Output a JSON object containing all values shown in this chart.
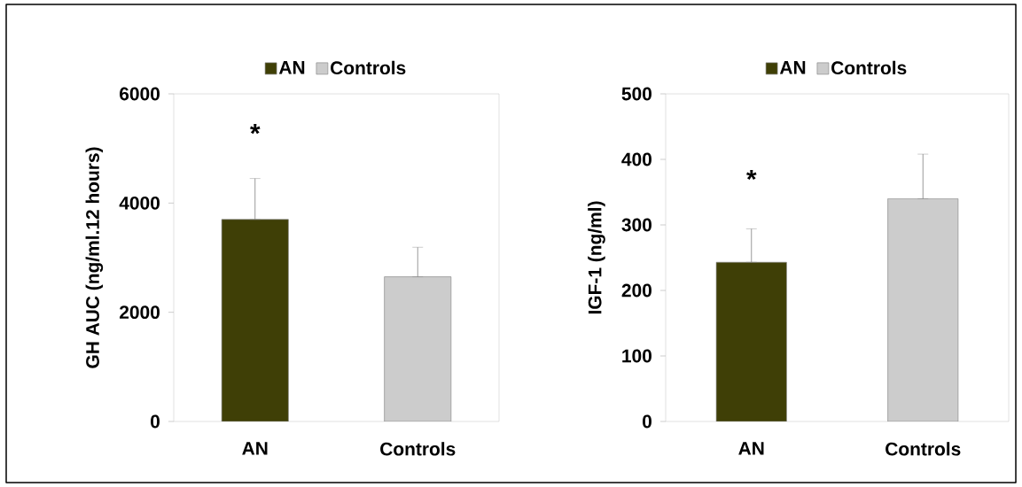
{
  "chart_data": [
    {
      "type": "bar",
      "categories": [
        "AN",
        "Controls"
      ],
      "ylabel": "GH AUC (ng/ml.12 hours)",
      "ylim": [
        0,
        6000
      ],
      "yticks": [
        0,
        2000,
        4000,
        6000
      ],
      "legend": "top",
      "grid": false,
      "series": [
        {
          "name": "AN",
          "color": "#3f3f06",
          "values": [
            3700,
            null
          ],
          "errors": [
            [
              3700,
              4450
            ],
            null
          ]
        },
        {
          "name": "Controls",
          "color": "#cccccc",
          "values": [
            null,
            2650
          ],
          "errors": [
            null,
            [
              2650,
              3190
            ]
          ]
        }
      ],
      "annotations": [
        "*"
      ]
    },
    {
      "type": "bar",
      "categories": [
        "AN",
        "Controls"
      ],
      "ylabel": "IGF-1 (ng/ml)",
      "ylim": [
        0,
        500
      ],
      "yticks": [
        0,
        100,
        200,
        300,
        400,
        500
      ],
      "legend": "top",
      "grid": false,
      "series": [
        {
          "name": "AN",
          "color": "#3f3f06",
          "values": [
            243,
            null
          ],
          "errors": [
            [
              243,
              294
            ],
            null
          ]
        },
        {
          "name": "Controls",
          "color": "#cccccc",
          "values": [
            null,
            340
          ],
          "errors": [
            null,
            [
              340,
              408
            ]
          ]
        }
      ],
      "annotations": [
        "*"
      ]
    }
  ]
}
